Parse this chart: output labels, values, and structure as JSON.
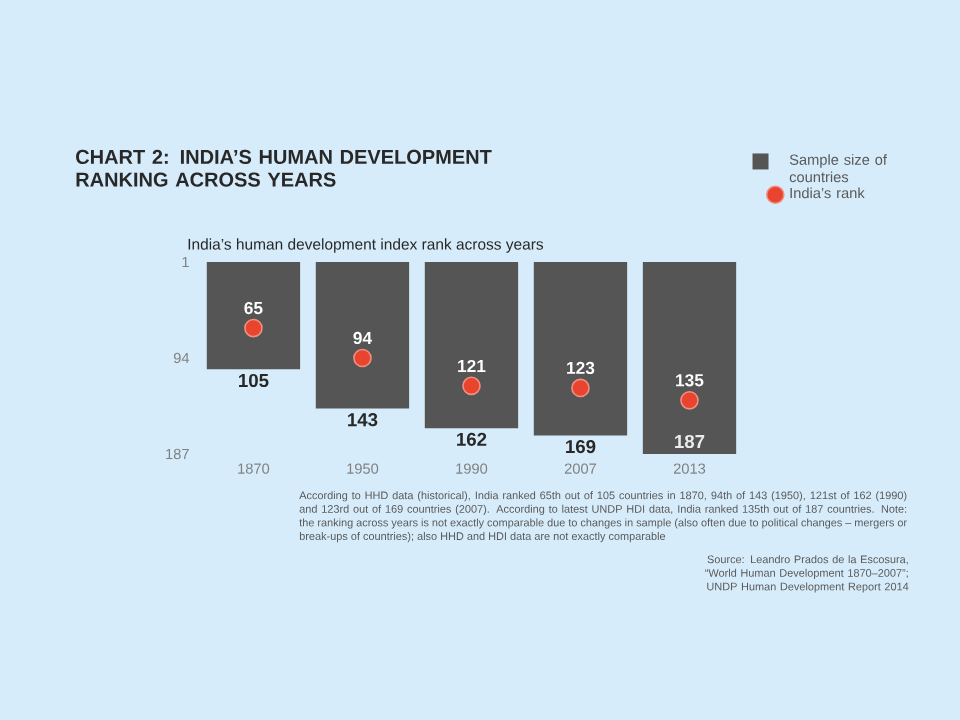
{
  "chart_data": {
    "type": "bar",
    "title": "CHART 2: INDIA’S HUMAN DEVELOPMENT RANKING ACROSS YEARS",
    "subtitle": "India’s human development index rank across years",
    "categories": [
      "1870",
      "1950",
      "1990",
      "2007",
      "2013"
    ],
    "series": [
      {
        "name": "Sample size of countries",
        "color": "#555555",
        "values": [
          105,
          143,
          162,
          169,
          187
        ]
      },
      {
        "name": "India’s rank",
        "type": "scatter",
        "color": "#e8442e",
        "values": [
          65,
          94,
          121,
          123,
          135
        ]
      }
    ],
    "ylim": [
      187,
      1
    ],
    "yticks": [
      1,
      94,
      187
    ],
    "data_labels": true,
    "marker": "circle",
    "legend": "top right",
    "annotations": [
      "According to HHD data (historical), India ranked 65th out of 105 countries in 1870, 94th of 143 (1950), 121st of 162 (1990) and 123rd out of 169 countries (2007). According to latest UNDP HDI data, India ranked 135th out of 187 countries. Note: the ranking across years is not exactly comparable due to changes in sample (also often due to political changes – mergers or break-ups of countries); also HHD and HDI data are not exactly comparable",
      "Source: Leandro Prados de la Escosura, “World Human Development 1870–2007”; UNDP Human Development Report 2014"
    ]
  }
}
